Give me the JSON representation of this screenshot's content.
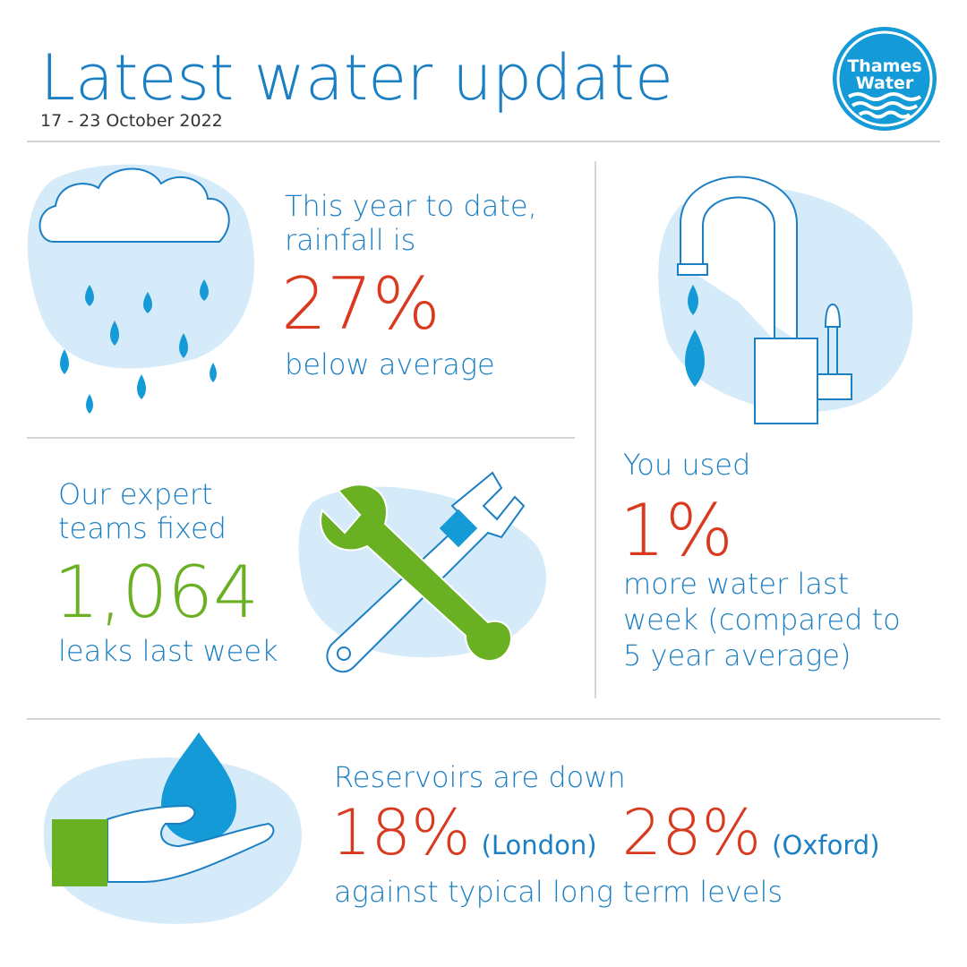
{
  "header": {
    "title": "Latest water update",
    "date": "17 - 23 October 2022"
  },
  "logo": {
    "line1": "Thames",
    "line2": "Water"
  },
  "rainfall": {
    "lines": [
      "This year to date,",
      "rainfall is"
    ],
    "figure": "27%",
    "after": "below average"
  },
  "leaks": {
    "lines": [
      "Our expert",
      "teams fixed"
    ],
    "figure": "1,064",
    "after": "leaks last week"
  },
  "usage": {
    "before": "You used",
    "figure": "1%",
    "after": [
      "more water last",
      "week (compared to",
      "5 year average)"
    ]
  },
  "reservoirs": {
    "before": "Reservoirs are down",
    "figures": [
      {
        "figure": "18%",
        "place": "(London)"
      },
      {
        "figure": "28%",
        "place": "(Oxford)"
      }
    ],
    "after": "against typical long term levels"
  }
}
